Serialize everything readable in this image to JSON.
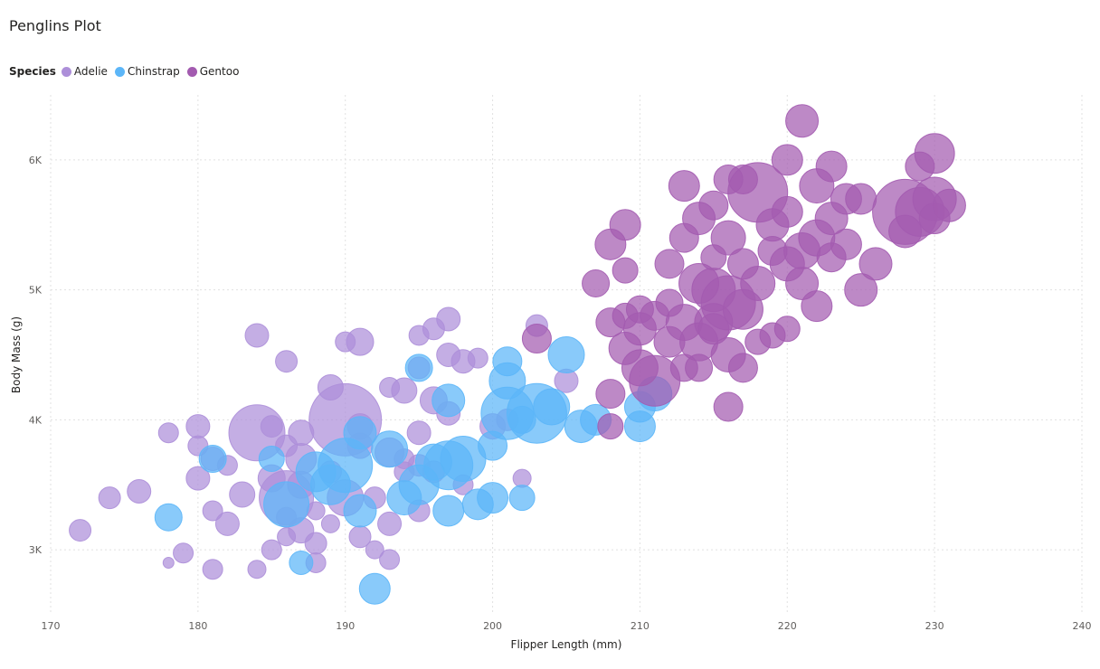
{
  "title": "Penglins Plot",
  "colors": {
    "Adelie": "#ad8fd9",
    "Chinstrap": "#5cb6f8",
    "Gentoo": "#a35bb0"
  },
  "legend": {
    "title": "Species",
    "items": [
      "Adelie",
      "Chinstrap",
      "Gentoo"
    ]
  },
  "chart_data": {
    "type": "scatter",
    "title": "Penglins Plot",
    "xlabel": "Flipper Length (mm)",
    "ylabel": "Body Mass (g)",
    "xlim": [
      170,
      240
    ],
    "ylim": [
      2500,
      6500
    ],
    "x_ticks": [
      170,
      180,
      190,
      200,
      210,
      220,
      230,
      240
    ],
    "y_ticks": [
      3000,
      4000,
      5000,
      6000
    ],
    "y_tick_labels": [
      "3K",
      "4K",
      "5K",
      "6K"
    ],
    "grid": true,
    "legend_position": "top-left",
    "series": [
      {
        "name": "Adelie",
        "points": [
          [
            172,
            3150,
            12
          ],
          [
            174,
            3400,
            12
          ],
          [
            176,
            3450,
            13
          ],
          [
            178,
            3900,
            11
          ],
          [
            178,
            2900,
            6
          ],
          [
            179,
            2975,
            11
          ],
          [
            180,
            3950,
            13
          ],
          [
            180,
            3800,
            11
          ],
          [
            180,
            3550,
            13
          ],
          [
            181,
            3700,
            13
          ],
          [
            181,
            3300,
            11
          ],
          [
            181,
            2850,
            11
          ],
          [
            182,
            3200,
            13
          ],
          [
            183,
            3425,
            14
          ],
          [
            184,
            3900,
            31
          ],
          [
            184,
            2850,
            10
          ],
          [
            184,
            4650,
            13
          ],
          [
            185,
            3550,
            15
          ],
          [
            185,
            3000,
            11
          ],
          [
            185,
            3950,
            12
          ],
          [
            186,
            3800,
            12
          ],
          [
            186,
            3400,
            30
          ],
          [
            186,
            4450,
            12
          ],
          [
            186,
            3100,
            10
          ],
          [
            187,
            3150,
            14
          ],
          [
            187,
            3500,
            15
          ],
          [
            187,
            3900,
            14
          ],
          [
            188,
            2900,
            11
          ],
          [
            188,
            3050,
            12
          ],
          [
            188,
            3300,
            10
          ],
          [
            189,
            3600,
            12
          ],
          [
            189,
            3200,
            10
          ],
          [
            190,
            4000,
            40
          ],
          [
            190,
            3400,
            20
          ],
          [
            190,
            4600,
            11
          ],
          [
            191,
            3100,
            12
          ],
          [
            191,
            3800,
            14
          ],
          [
            191,
            3950,
            14
          ],
          [
            191,
            4600,
            15
          ],
          [
            192,
            3000,
            10
          ],
          [
            192,
            3400,
            12
          ],
          [
            193,
            3200,
            13
          ],
          [
            193,
            2925,
            11
          ],
          [
            193,
            3750,
            16
          ],
          [
            193,
            4250,
            11
          ],
          [
            194,
            4225,
            14
          ],
          [
            194,
            3700,
            11
          ],
          [
            195,
            3300,
            12
          ],
          [
            195,
            3650,
            12
          ],
          [
            195,
            3900,
            13
          ],
          [
            195,
            4650,
            11
          ],
          [
            195,
            4400,
            12
          ],
          [
            196,
            4150,
            15
          ],
          [
            196,
            3600,
            12
          ],
          [
            196,
            4700,
            12
          ],
          [
            197,
            4500,
            13
          ],
          [
            197,
            4775,
            13
          ],
          [
            197,
            4050,
            13
          ],
          [
            198,
            4450,
            13
          ],
          [
            198,
            3500,
            11
          ],
          [
            199,
            4475,
            11
          ],
          [
            200,
            3950,
            14
          ],
          [
            201,
            4000,
            12
          ],
          [
            202,
            3550,
            10
          ],
          [
            203,
            4725,
            12
          ],
          [
            205,
            4300,
            13
          ],
          [
            189,
            4250,
            14
          ],
          [
            187,
            3700,
            17
          ],
          [
            194,
            3600,
            11
          ],
          [
            186,
            3250,
            11
          ],
          [
            182,
            3650,
            11
          ]
        ]
      },
      {
        "name": "Chinstrap",
        "points": [
          [
            178,
            3250,
            15
          ],
          [
            181,
            3700,
            15
          ],
          [
            185,
            3700,
            14
          ],
          [
            186,
            3350,
            25
          ],
          [
            187,
            2900,
            13
          ],
          [
            188,
            3600,
            22
          ],
          [
            189,
            3500,
            22
          ],
          [
            190,
            3650,
            30
          ],
          [
            191,
            3300,
            18
          ],
          [
            191,
            3900,
            18
          ],
          [
            192,
            2700,
            17
          ],
          [
            193,
            3775,
            20
          ],
          [
            194,
            3400,
            19
          ],
          [
            195,
            3500,
            22
          ],
          [
            195,
            4400,
            15
          ],
          [
            196,
            3675,
            20
          ],
          [
            197,
            3300,
            17
          ],
          [
            197,
            3650,
            27
          ],
          [
            197,
            4150,
            18
          ],
          [
            198,
            3700,
            25
          ],
          [
            199,
            3350,
            17
          ],
          [
            200,
            3400,
            17
          ],
          [
            200,
            3800,
            16
          ],
          [
            201,
            4450,
            16
          ],
          [
            201,
            4300,
            20
          ],
          [
            202,
            3400,
            14
          ],
          [
            202,
            4000,
            15
          ],
          [
            201,
            4050,
            29
          ],
          [
            203,
            4050,
            33
          ],
          [
            204,
            4100,
            20
          ],
          [
            205,
            4500,
            20
          ],
          [
            206,
            3950,
            18
          ],
          [
            207,
            4000,
            17
          ],
          [
            210,
            3950,
            17
          ],
          [
            210,
            4100,
            17
          ],
          [
            211,
            4200,
            19
          ]
        ]
      },
      {
        "name": "Gentoo",
        "points": [
          [
            203,
            4625,
            16
          ],
          [
            207,
            5050,
            15
          ],
          [
            208,
            4750,
            16
          ],
          [
            208,
            4200,
            16
          ],
          [
            208,
            3950,
            14
          ],
          [
            208,
            5350,
            17
          ],
          [
            209,
            5500,
            17
          ],
          [
            209,
            4800,
            14
          ],
          [
            209,
            4550,
            18
          ],
          [
            210,
            4400,
            20
          ],
          [
            210,
            4700,
            18
          ],
          [
            210,
            4850,
            15
          ],
          [
            211,
            4300,
            28
          ],
          [
            211,
            4800,
            16
          ],
          [
            212,
            4600,
            17
          ],
          [
            212,
            5200,
            16
          ],
          [
            212,
            4900,
            15
          ],
          [
            213,
            4400,
            15
          ],
          [
            213,
            5800,
            17
          ],
          [
            213,
            5400,
            16
          ],
          [
            213,
            4750,
            20
          ],
          [
            214,
            5050,
            22
          ],
          [
            214,
            4600,
            21
          ],
          [
            214,
            4400,
            15
          ],
          [
            215,
            5000,
            24
          ],
          [
            215,
            5250,
            14
          ],
          [
            215,
            5650,
            16
          ],
          [
            215,
            4750,
            21
          ],
          [
            216,
            4900,
            30
          ],
          [
            216,
            4100,
            16
          ],
          [
            216,
            5400,
            19
          ],
          [
            216,
            5850,
            16
          ],
          [
            216,
            4500,
            19
          ],
          [
            217,
            4400,
            16
          ],
          [
            217,
            5200,
            17
          ],
          [
            217,
            4850,
            22
          ],
          [
            217,
            5850,
            16
          ],
          [
            218,
            5750,
            33
          ],
          [
            218,
            5050,
            19
          ],
          [
            218,
            4600,
            14
          ],
          [
            219,
            5300,
            16
          ],
          [
            219,
            4650,
            14
          ],
          [
            219,
            5500,
            18
          ],
          [
            220,
            5200,
            19
          ],
          [
            220,
            5600,
            17
          ],
          [
            220,
            6000,
            17
          ],
          [
            220,
            4700,
            14
          ],
          [
            221,
            6300,
            18
          ],
          [
            221,
            5300,
            20
          ],
          [
            221,
            5050,
            18
          ],
          [
            222,
            5800,
            19
          ],
          [
            222,
            4875,
            17
          ],
          [
            222,
            5400,
            20
          ],
          [
            223,
            5950,
            17
          ],
          [
            223,
            5550,
            18
          ],
          [
            224,
            5350,
            17
          ],
          [
            224,
            5700,
            17
          ],
          [
            225,
            5700,
            17
          ],
          [
            225,
            5000,
            18
          ],
          [
            226,
            5200,
            18
          ],
          [
            228,
            5600,
            36
          ],
          [
            228,
            5450,
            18
          ],
          [
            229,
            5600,
            27
          ],
          [
            229,
            5950,
            16
          ],
          [
            230,
            6050,
            22
          ],
          [
            230,
            5700,
            24
          ],
          [
            230,
            5550,
            17
          ],
          [
            231,
            5650,
            18
          ],
          [
            215,
            4700,
            17
          ],
          [
            209,
            5150,
            14
          ],
          [
            214,
            5550,
            18
          ],
          [
            223,
            5250,
            16
          ]
        ]
      }
    ]
  }
}
